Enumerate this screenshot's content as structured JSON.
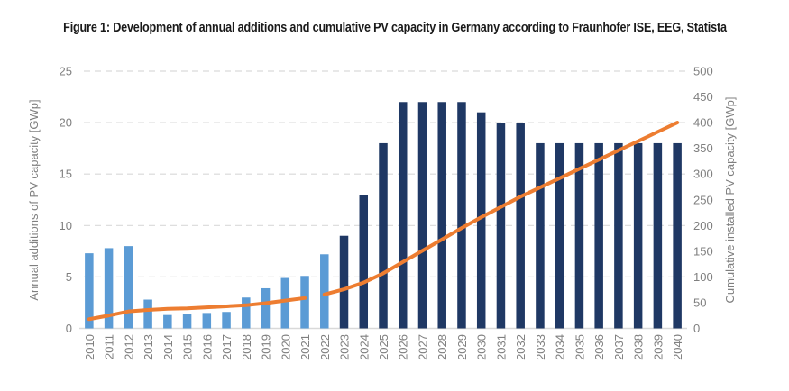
{
  "figure": {
    "title": "Figure 1: Development of annual additions and cumulative PV capacity in Germany according to Fraunhofer ISE, EEG, Statista"
  },
  "chart_data": {
    "type": "bar",
    "title": "Figure 1: Development of annual additions and cumulative PV capacity in Germany according to Fraunhofer ISE, EEG, Statista",
    "categories": [
      "2010",
      "2011",
      "2012",
      "2013",
      "2014",
      "2015",
      "2016",
      "2017",
      "2018",
      "2019",
      "2020",
      "2021",
      "2022",
      "2023",
      "2024",
      "2025",
      "2026",
      "2027",
      "2028",
      "2029",
      "2030",
      "2031",
      "2032",
      "2033",
      "2034",
      "2035",
      "2036",
      "2037",
      "2038",
      "2039",
      "2040"
    ],
    "bar_series": [
      {
        "name": "Annual additions of PV capacity (historical)",
        "axis": "left",
        "color_key": "bar_historical",
        "start_index": 0,
        "values": [
          7.3,
          7.8,
          8.0,
          2.8,
          1.3,
          1.4,
          1.5,
          1.6,
          3.0,
          3.9,
          4.9,
          5.1,
          7.2
        ]
      },
      {
        "name": "Annual additions of PV capacity (projected)",
        "axis": "left",
        "color_key": "bar_projected",
        "start_index": 13,
        "values": [
          9,
          13,
          18,
          22,
          22,
          22,
          22,
          21,
          20,
          20,
          18,
          18,
          18,
          18,
          18,
          18,
          18,
          18
        ]
      }
    ],
    "line_series": {
      "name": "Cumulative installed PV capacity",
      "axis": "right",
      "color_key": "line",
      "segments": [
        {
          "start_index": 0,
          "values": [
            18,
            25,
            33,
            36,
            38,
            39,
            41,
            43,
            45,
            49,
            54,
            59
          ]
        },
        {
          "start_index": 12,
          "values": [
            66,
            76,
            89,
            107,
            129,
            151,
            173,
            195,
            216,
            236,
            256,
            274,
            292,
            310,
            328,
            346,
            364,
            382,
            400
          ]
        }
      ]
    },
    "left_axis": {
      "title": "Annual additions of PV capacity [GWp]",
      "min": 0,
      "max": 25,
      "ticks": [
        0,
        5,
        10,
        15,
        20,
        25
      ]
    },
    "right_axis": {
      "title": "Cumulative installed PV capacity [GWp]",
      "min": 0,
      "max": 500,
      "ticks": [
        0,
        50,
        100,
        150,
        200,
        250,
        300,
        350,
        400,
        450,
        500
      ]
    },
    "grid": "dashed-horizontal",
    "legend": "none",
    "colors": {
      "bar_historical": "#5B9BD5",
      "bar_projected": "#1F3864",
      "line": "#ED7D31",
      "gridline": "#D9D9D9",
      "axis_line": "#D9D9D9",
      "tick_text": "#7F7F7F",
      "title_text": "#1a1a1a"
    }
  }
}
